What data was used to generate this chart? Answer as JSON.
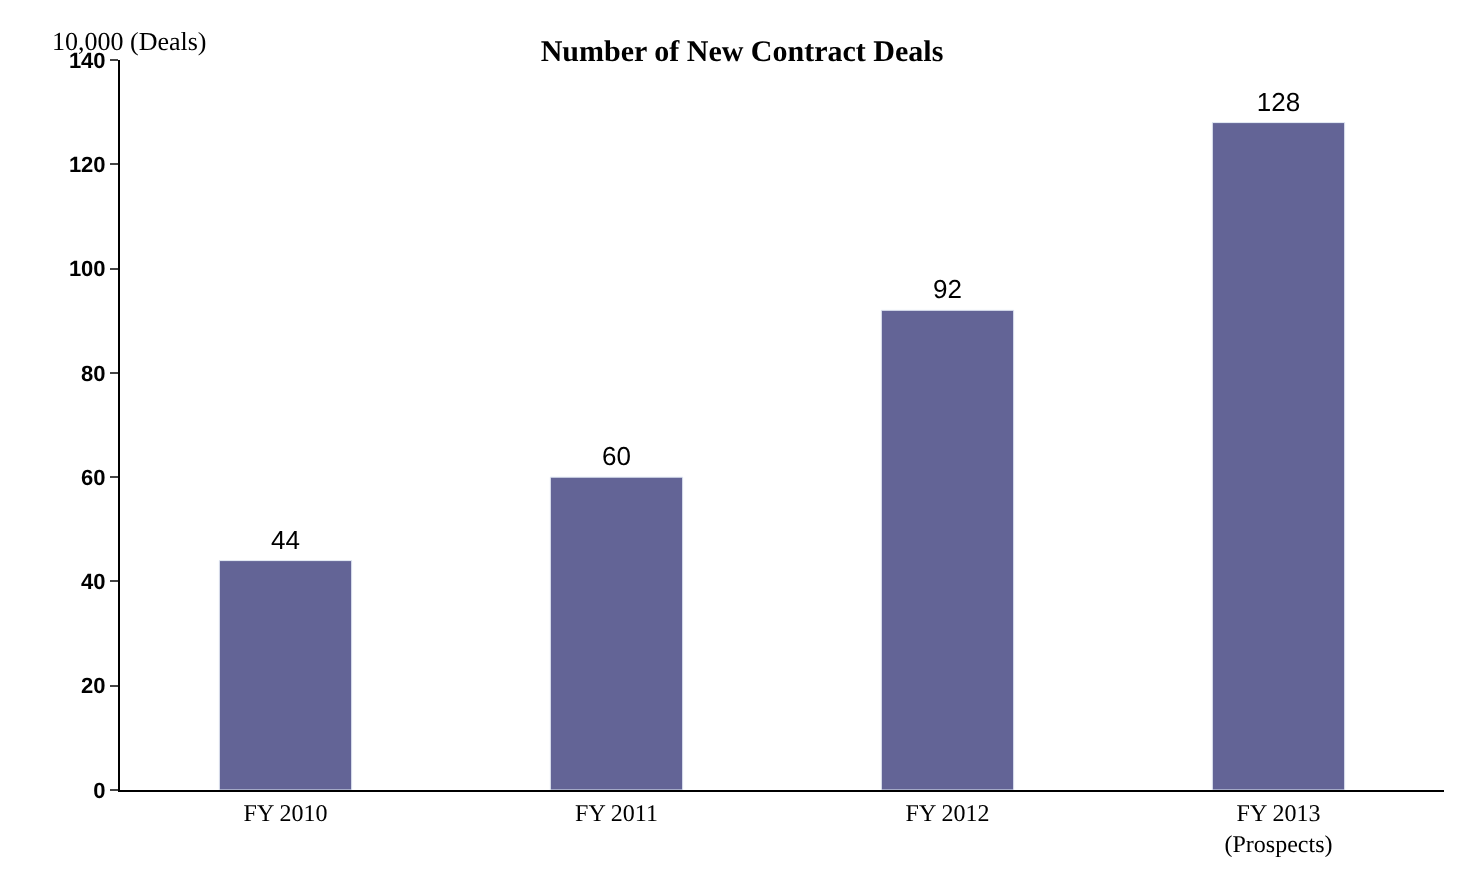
{
  "chart_data": {
    "type": "bar",
    "title": "Number of New Contract Deals",
    "ylabel": "10,000 (Deals)",
    "categories": [
      "FY 2010",
      "FY 2011",
      "FY 2012",
      "FY 2013\n(Prospects)"
    ],
    "values": [
      44,
      60,
      92,
      128
    ],
    "color": "#636496",
    "ylim": [
      0,
      140
    ],
    "yticks": [
      0,
      20,
      40,
      60,
      80,
      100,
      120,
      140
    ],
    "data_labels": true,
    "legend": false
  }
}
